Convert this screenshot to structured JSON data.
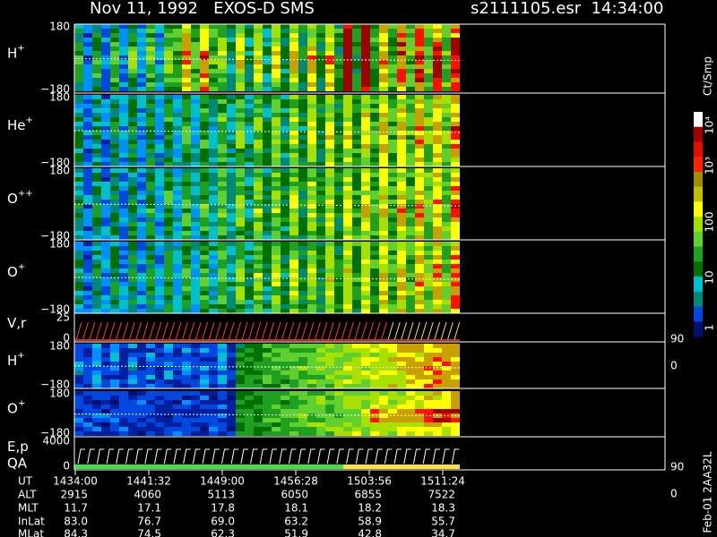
{
  "header": {
    "title": "Nov 11, 1992   EXOS-D SMS",
    "file": "s2111105.esr  14:34:00"
  },
  "panels": [
    {
      "ion": "H",
      "charge": "+",
      "top": "180",
      "bottom": "−180"
    },
    {
      "ion": "He",
      "charge": "+",
      "top": "180",
      "bottom": "−180"
    },
    {
      "ion": "O",
      "charge": "++",
      "top": "180",
      "bottom": "−180"
    },
    {
      "ion": "O",
      "charge": "+",
      "top": "180",
      "bottom": "−180"
    },
    {
      "ion": "V,r",
      "top": "25",
      "bottom": "0",
      "right_top": "90",
      "right_bottom": "0"
    },
    {
      "ion": "H",
      "charge": "+",
      "top": "180",
      "bottom": "−180"
    },
    {
      "ion": "O",
      "charge": "+",
      "top": "180",
      "bottom": "−180"
    },
    {
      "ion": "E,p",
      "sub": "QA",
      "top": "4000",
      "bottom": "0",
      "right_top": "90",
      "right_bottom": "0"
    }
  ],
  "colorbar": {
    "unit": "Ct/Smp",
    "labels": [
      "10⁴",
      "10³",
      "100",
      "10",
      "1"
    ]
  },
  "footer": {
    "rows": [
      {
        "name": "UT",
        "values": [
          "1434:00",
          "1441:32",
          "1449:00",
          "1456:28",
          "1503:56",
          "1511:24"
        ]
      },
      {
        "name": "ALT",
        "values": [
          "2915",
          "4060",
          "5113",
          "6050",
          "6855",
          "7522"
        ]
      },
      {
        "name": "MLT",
        "values": [
          "11.7",
          "17.1",
          "17.8",
          "18.1",
          "18.2",
          "18.3"
        ]
      },
      {
        "name": "InLat",
        "values": [
          "83.0",
          "76.7",
          "69.0",
          "63.2",
          "58.9",
          "55.7"
        ]
      },
      {
        "name": "MLat",
        "values": [
          "84.3",
          "74.5",
          "62.3",
          "51.9",
          "42.8",
          "34.7"
        ]
      }
    ],
    "note": "Feb-01 2AA32L"
  }
}
